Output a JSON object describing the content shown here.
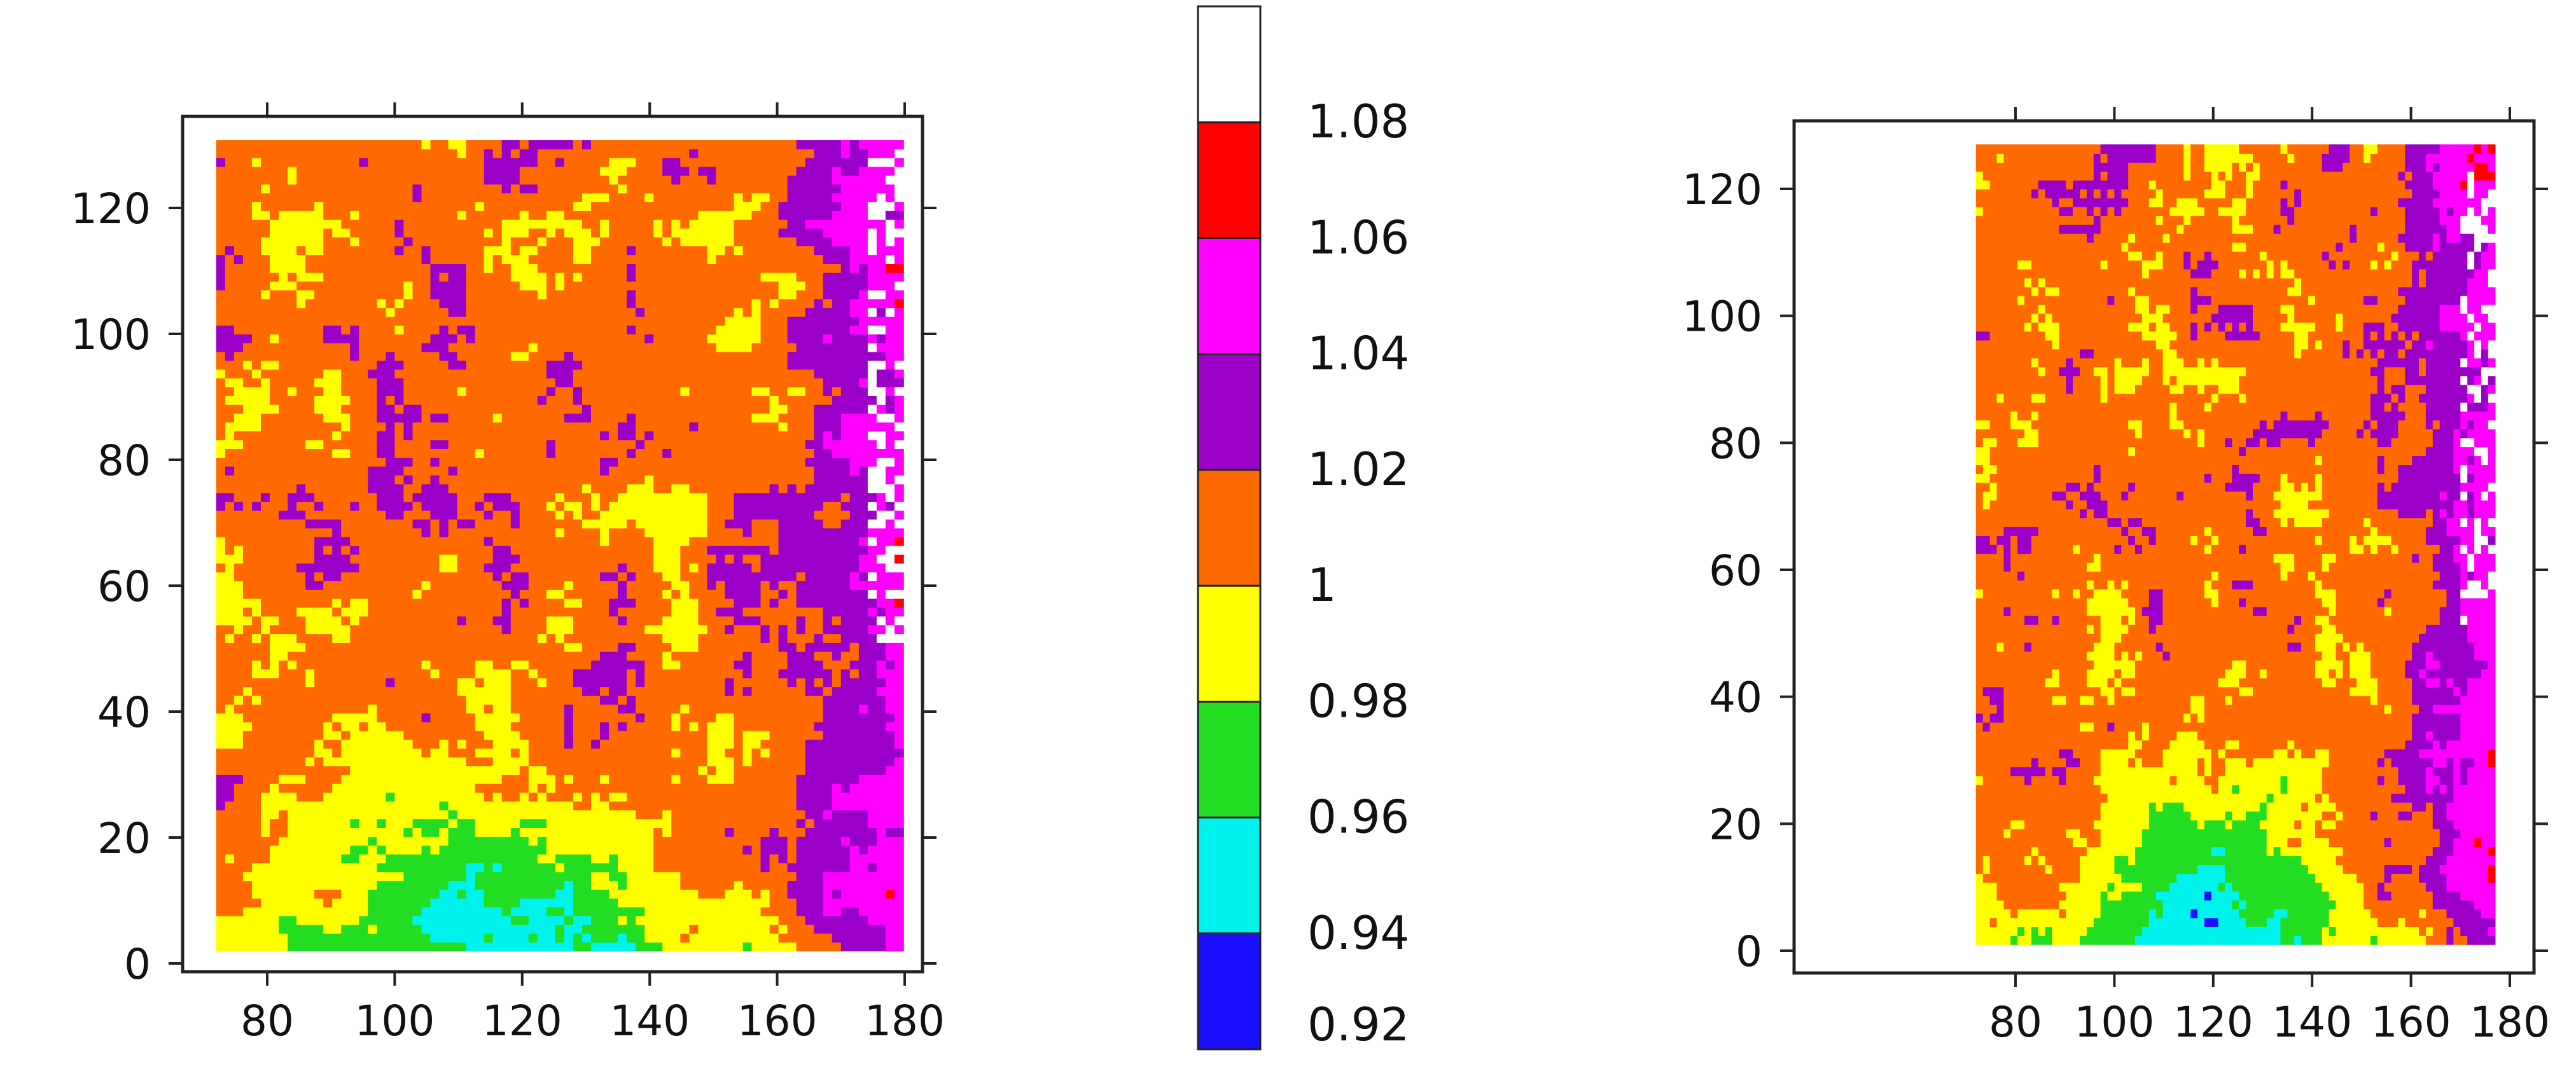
{
  "chart_data": [
    {
      "type": "heatmap",
      "title": "",
      "xlabel": "",
      "ylabel": "",
      "xlim": [
        70,
        180
      ],
      "ylim": [
        0,
        130
      ],
      "x_ticks": [
        "80",
        "100",
        "120",
        "140",
        "160",
        "180"
      ],
      "y_ticks": [
        "0",
        "20",
        "40",
        "60",
        "80",
        "100",
        "120"
      ],
      "field": {
        "x_range": [
          72,
          179
        ],
        "y_range": [
          2,
          130
        ],
        "description_values": "ratio field 0.92-1.08; low (0.94-0.98) near bottom center, high (1.04-1.08) along right edge",
        "low_center": [
          115,
          5
        ],
        "high_edge_x": 175
      }
    },
    {
      "type": "heatmap",
      "title": "",
      "xlabel": "",
      "ylabel": "",
      "xlim": [
        70,
        180
      ],
      "ylim": [
        0,
        130
      ],
      "x_ticks": [
        "80",
        "100",
        "120",
        "140",
        "160",
        "180"
      ],
      "y_ticks": [
        "0",
        "20",
        "40",
        "60",
        "80",
        "100",
        "120"
      ],
      "field": {
        "x_range": [
          72,
          177
        ],
        "y_range": [
          1,
          127
        ],
        "low_center": [
          115,
          5
        ],
        "high_edge_x": 172
      }
    }
  ],
  "colorbar": {
    "levels": [
      "0.92",
      "0.94",
      "0.96",
      "0.98",
      "1",
      "1.02",
      "1.04",
      "1.06",
      "1.08"
    ],
    "colors": [
      "#1a10ff",
      "#00f2ec",
      "#22dd22",
      "#ffff00",
      "#ff6a00",
      "#9a00c8",
      "#ff00ff",
      "#ff0000",
      "#ffffff"
    ]
  }
}
